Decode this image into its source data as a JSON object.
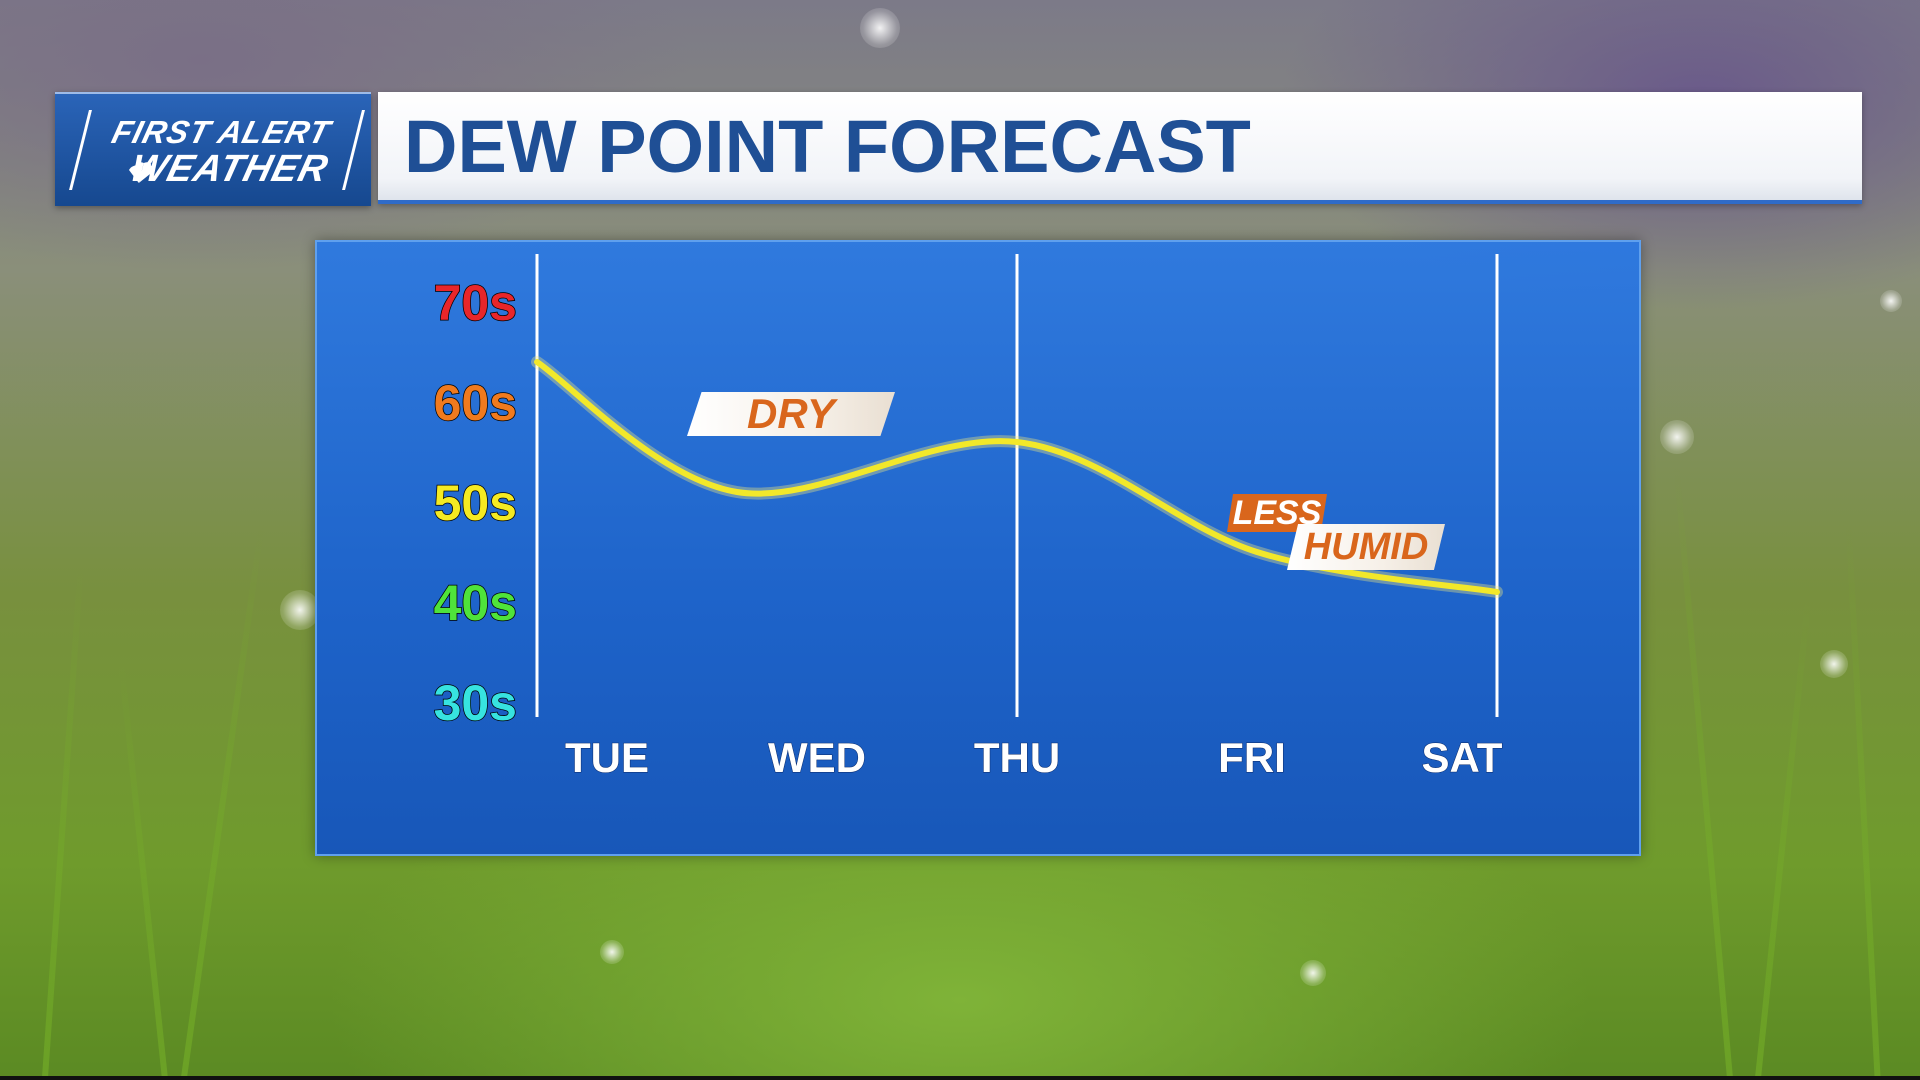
{
  "logo": {
    "line1": "FIRST ALERT",
    "line2": "WEATHER"
  },
  "title": "DEW POINT FORECAST",
  "chart_data": {
    "type": "line",
    "x": [
      "TUE",
      "WED",
      "THU",
      "FRI",
      "SAT"
    ],
    "y_categories": [
      "70s",
      "60s",
      "50s",
      "40s",
      "30s"
    ],
    "y_colors": [
      "#e8262a",
      "#f07a1e",
      "#f5ea22",
      "#4fe33a",
      "#37e3e0"
    ],
    "series": [
      {
        "values": [
          64,
          51,
          56,
          45,
          41
        ],
        "color": "#f2e82a"
      }
    ],
    "ylim": [
      30,
      75
    ],
    "annotations": [
      {
        "text": "DRY"
      },
      {
        "line1": "LESS",
        "line2": "HUMID"
      }
    ],
    "grid": false
  }
}
